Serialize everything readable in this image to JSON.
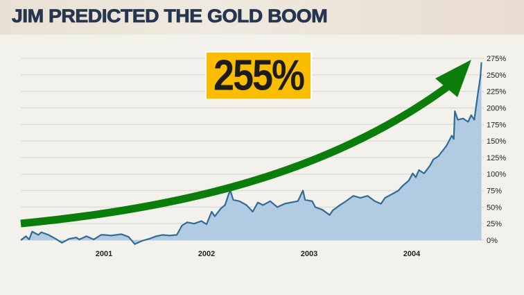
{
  "title": "JIM PREDICTED THE GOLD BOOM",
  "callout": "255%",
  "colors": {
    "line": "#2f6b95",
    "fill": "#b0cbe2",
    "arrow": "#0a7d0a",
    "callout_bg": "#fbbd00",
    "title": "#26364f",
    "grid": "#dcdad5"
  },
  "chart_data": {
    "type": "area",
    "title": "",
    "xlabel": "",
    "ylabel": "",
    "x_ticks": [
      "2001",
      "2002",
      "2003",
      "2004"
    ],
    "y_ticks": [
      "0%",
      "25%",
      "50%",
      "75%",
      "100%",
      "125%",
      "150%",
      "175%",
      "200%",
      "225%",
      "250%",
      "275%"
    ],
    "ylim": [
      0,
      275
    ],
    "xlim": [
      2000.19,
      2004.68
    ],
    "grid": "horizontal",
    "y_axis_position": "right",
    "annotation": {
      "text": "255%",
      "shape": "upward curved green arrow"
    },
    "points": [
      [
        2000.19,
        0
      ],
      [
        2000.24,
        6
      ],
      [
        2000.27,
        1
      ],
      [
        2000.3,
        13
      ],
      [
        2000.36,
        8
      ],
      [
        2000.39,
        12
      ],
      [
        2000.46,
        8
      ],
      [
        2000.53,
        2
      ],
      [
        2000.59,
        -4
      ],
      [
        2000.66,
        2
      ],
      [
        2000.73,
        4
      ],
      [
        2000.76,
        1
      ],
      [
        2000.83,
        6
      ],
      [
        2000.9,
        1
      ],
      [
        2000.97,
        8
      ],
      [
        2001.0,
        8
      ],
      [
        2001.07,
        7
      ],
      [
        2001.17,
        9
      ],
      [
        2001.24,
        5
      ],
      [
        2001.3,
        -6
      ],
      [
        2001.37,
        -1
      ],
      [
        2001.44,
        2
      ],
      [
        2001.51,
        6
      ],
      [
        2001.57,
        8
      ],
      [
        2001.64,
        7
      ],
      [
        2001.71,
        8
      ],
      [
        2001.76,
        22
      ],
      [
        2001.81,
        27
      ],
      [
        2001.88,
        25
      ],
      [
        2001.95,
        29
      ],
      [
        2002.0,
        24
      ],
      [
        2002.05,
        43
      ],
      [
        2002.08,
        36
      ],
      [
        2002.14,
        48
      ],
      [
        2002.18,
        53
      ],
      [
        2002.23,
        76
      ],
      [
        2002.26,
        61
      ],
      [
        2002.32,
        59
      ],
      [
        2002.39,
        53
      ],
      [
        2002.42,
        48
      ],
      [
        2002.45,
        43
      ],
      [
        2002.5,
        57
      ],
      [
        2002.55,
        53
      ],
      [
        2002.62,
        59
      ],
      [
        2002.69,
        50
      ],
      [
        2002.76,
        55
      ],
      [
        2002.82,
        57
      ],
      [
        2002.89,
        59
      ],
      [
        2002.94,
        75
      ],
      [
        2002.96,
        61
      ],
      [
        2003.03,
        59
      ],
      [
        2003.06,
        50
      ],
      [
        2003.13,
        46
      ],
      [
        2003.2,
        38
      ],
      [
        2003.23,
        45
      ],
      [
        2003.3,
        53
      ],
      [
        2003.36,
        59
      ],
      [
        2003.43,
        67
      ],
      [
        2003.5,
        64
      ],
      [
        2003.57,
        67
      ],
      [
        2003.64,
        59
      ],
      [
        2003.7,
        55
      ],
      [
        2003.74,
        64
      ],
      [
        2003.8,
        69
      ],
      [
        2003.87,
        75
      ],
      [
        2003.91,
        82
      ],
      [
        2003.97,
        90
      ],
      [
        2004.01,
        101
      ],
      [
        2004.04,
        95
      ],
      [
        2004.07,
        106
      ],
      [
        2004.12,
        101
      ],
      [
        2004.18,
        113
      ],
      [
        2004.21,
        122
      ],
      [
        2004.26,
        127
      ],
      [
        2004.31,
        137
      ],
      [
        2004.34,
        143
      ],
      [
        2004.39,
        158
      ],
      [
        2004.41,
        153
      ],
      [
        2004.42,
        195
      ],
      [
        2004.45,
        182
      ],
      [
        2004.5,
        184
      ],
      [
        2004.55,
        179
      ],
      [
        2004.58,
        189
      ],
      [
        2004.61,
        182
      ],
      [
        2004.64,
        216
      ],
      [
        2004.66,
        237
      ],
      [
        2004.67,
        248
      ],
      [
        2004.68,
        269
      ]
    ]
  }
}
